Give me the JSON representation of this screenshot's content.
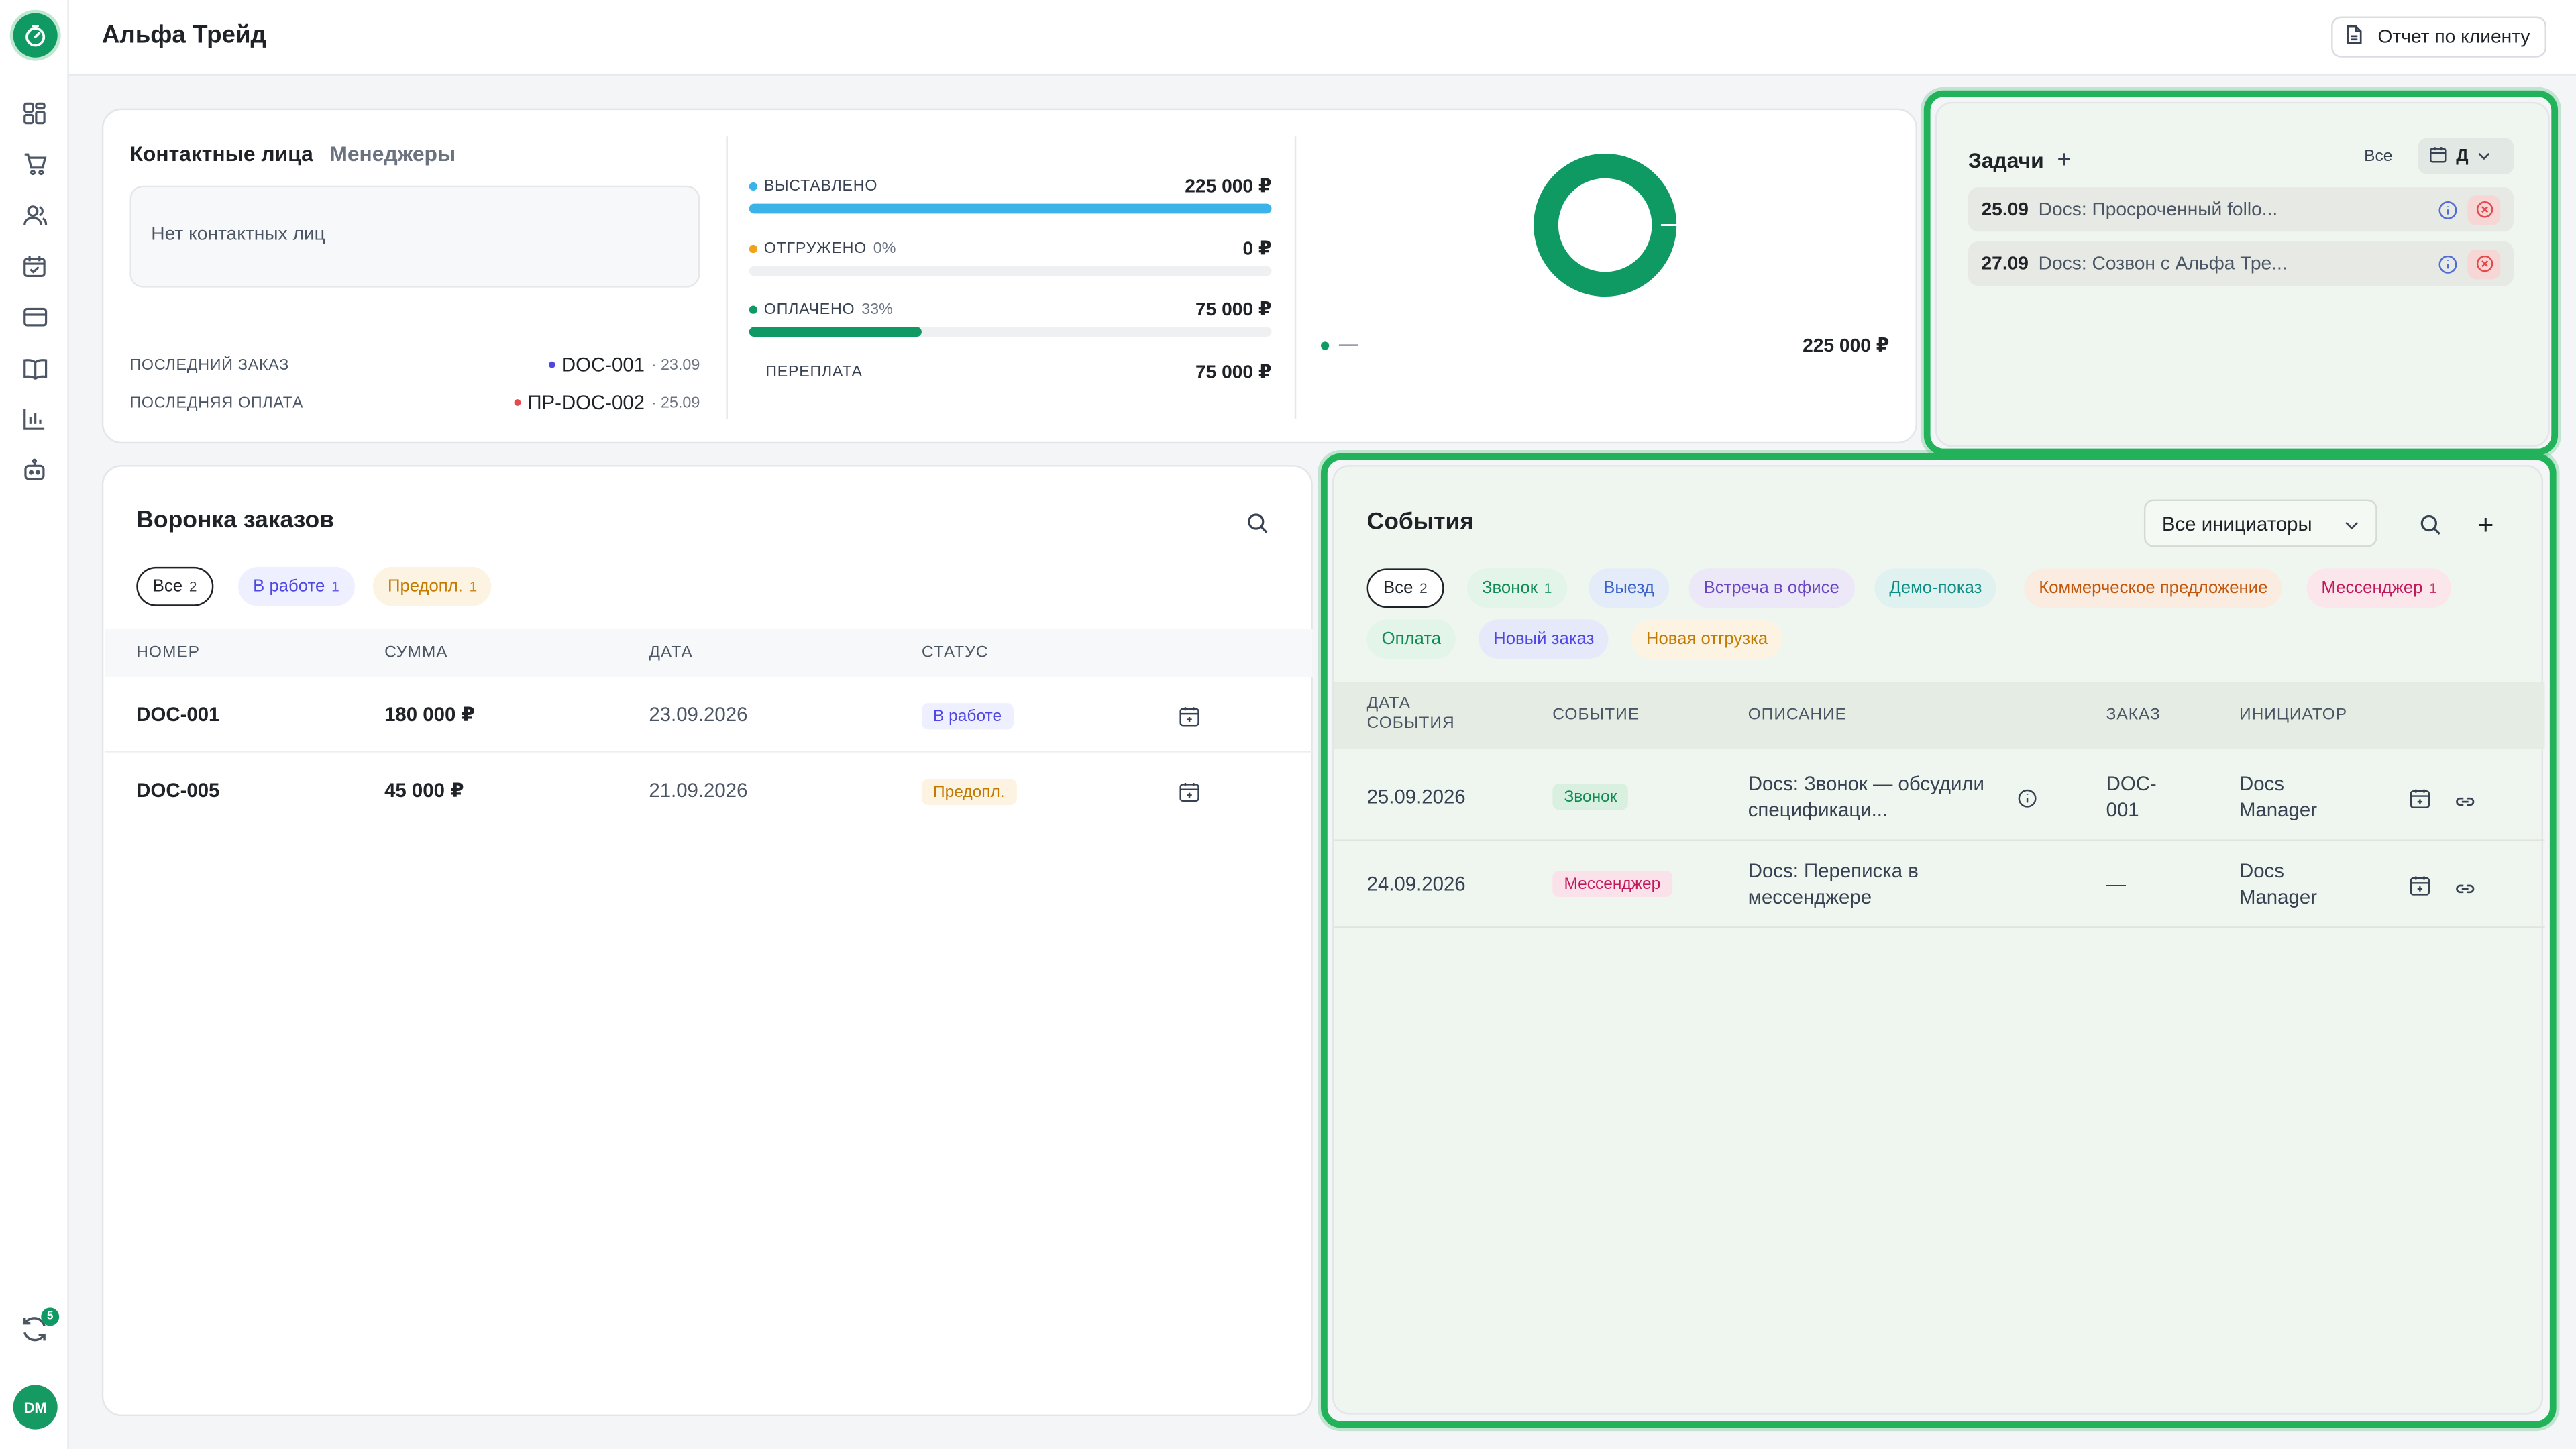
{
  "header": {
    "title": "Альфа Трейд",
    "report_button": "Отчет по клиенту"
  },
  "sidebar": {
    "logo_icon": "stopwatch-icon",
    "items": [
      {
        "name": "dashboard-icon"
      },
      {
        "name": "cart-icon"
      },
      {
        "name": "users-icon"
      },
      {
        "name": "calendar-check-icon"
      },
      {
        "name": "credit-card-icon"
      },
      {
        "name": "book-icon"
      },
      {
        "name": "bar-chart-icon"
      },
      {
        "name": "robot-icon"
      }
    ],
    "sync_badge": "5",
    "avatar": "DM"
  },
  "summary": {
    "tabs": [
      "Контактные лица",
      "Менеджеры"
    ],
    "no_contacts": "Нет контактных лиц",
    "last_order_label": "ПОСЛЕДНИЙ ЗАКАЗ",
    "last_order_value": "DOC-001",
    "last_order_date": "· 23.09",
    "last_payment_label": "ПОСЛЕДНЯЯ ОПЛАТА",
    "last_payment_value": "ПР-DOC-002",
    "last_payment_date": "· 25.09",
    "finance": [
      {
        "label": "ВЫСТАВЛЕНО",
        "pct": "",
        "value": "225 000 ₽",
        "color": "#3bb3e8",
        "fill": 1.0
      },
      {
        "label": "ОТГРУЖЕНО",
        "pct": "0%",
        "value": "0 ₽",
        "color": "#f0a21a",
        "fill": 0.0
      },
      {
        "label": "ОПЛАЧЕНО",
        "pct": "33%",
        "value": "75 000 ₽",
        "color": "#0f9a63",
        "fill": 0.33
      },
      {
        "label": "ПЕРЕПЛАТА",
        "pct": "",
        "value": "75 000 ₽",
        "color": "",
        "fill": null
      }
    ],
    "donut_legend_label": "—",
    "donut_total": "225 000 ₽",
    "donut_color": "#0f9a63"
  },
  "tasks": {
    "title": "Задачи",
    "filter_all": "Все",
    "period": "Д",
    "items": [
      {
        "date": "25.09",
        "text": "Docs: Просроченный follo..."
      },
      {
        "date": "27.09",
        "text": "Docs: Созвон с Альфа Тре..."
      }
    ]
  },
  "funnel": {
    "title": "Воронка заказов",
    "chips": [
      {
        "label": "Все",
        "count": "2"
      },
      {
        "label": "В работе",
        "count": "1"
      },
      {
        "label": "Предопл.",
        "count": "1"
      }
    ],
    "columns": [
      "НОМЕР",
      "СУММА",
      "ДАТА",
      "СТАТУС"
    ],
    "rows": [
      {
        "number": "DOC-001",
        "sum": "180 000 ₽",
        "date": "23.09.2026",
        "status": "В работе"
      },
      {
        "number": "DOC-005",
        "sum": "45 000 ₽",
        "date": "21.09.2026",
        "status": "Предопл."
      }
    ]
  },
  "events": {
    "title": "События",
    "initiators": "Все инициаторы",
    "chips": [
      {
        "label": "Все",
        "count": "2"
      },
      {
        "label": "Звонок",
        "count": "1"
      },
      {
        "label": "Выезд",
        "count": ""
      },
      {
        "label": "Встреча в офисе",
        "count": ""
      },
      {
        "label": "Демо-показ",
        "count": ""
      },
      {
        "label": "Коммерческое предложение",
        "count": ""
      },
      {
        "label": "Мессенджер",
        "count": "1"
      },
      {
        "label": "Оплата",
        "count": ""
      },
      {
        "label": "Новый заказ",
        "count": ""
      },
      {
        "label": "Новая отгрузка",
        "count": ""
      }
    ],
    "columns": {
      "date_1": "ДАТА",
      "date_2": "СОБЫТИЯ",
      "event": "СОБЫТИЕ",
      "desc": "ОПИСАНИЕ",
      "order": "ЗАКАЗ",
      "initiator": "ИНИЦИАТОР"
    },
    "rows": [
      {
        "date": "25.09.2026",
        "event": "Звонок",
        "desc_1": "Docs: Звонок — обсудили",
        "desc_2": "спецификаци...",
        "order_1": "DOC-",
        "order_2": "001",
        "init_1": "Docs",
        "init_2": "Manager"
      },
      {
        "date": "24.09.2026",
        "event": "Мессенджер",
        "desc_1": "Docs: Переписка в",
        "desc_2": "мессенджере",
        "order_1": "—",
        "order_2": "",
        "init_1": "Docs",
        "init_2": "Manager"
      }
    ]
  }
}
